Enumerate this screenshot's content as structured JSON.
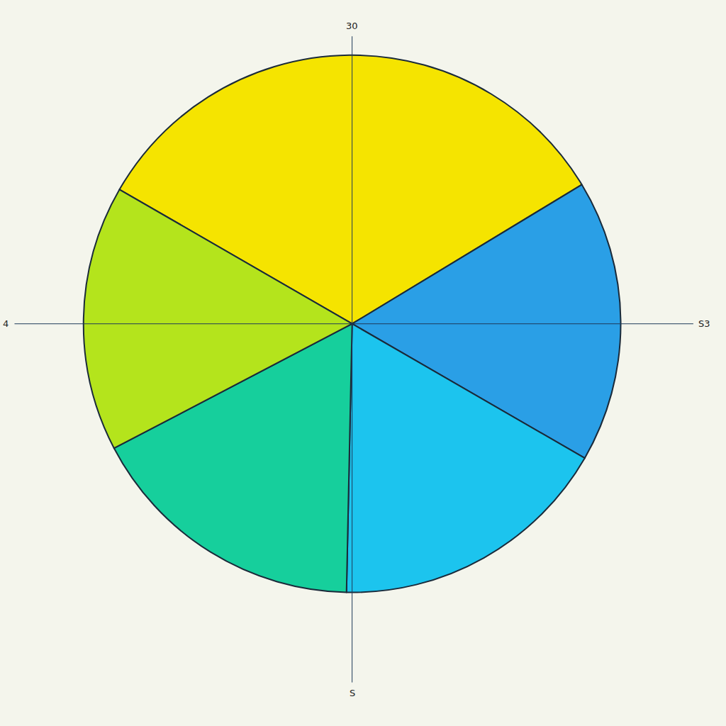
{
  "chart_data": {
    "type": "pie",
    "values": [
      33,
      17,
      17,
      17,
      16
    ],
    "colors": [
      "#f5e400",
      "#2a9fe6",
      "#1cc4ee",
      "#16cf9c",
      "#b4e41c"
    ],
    "axis_labels": {
      "top": "30",
      "left": "4",
      "right": "S3",
      "bottom": "S"
    }
  }
}
